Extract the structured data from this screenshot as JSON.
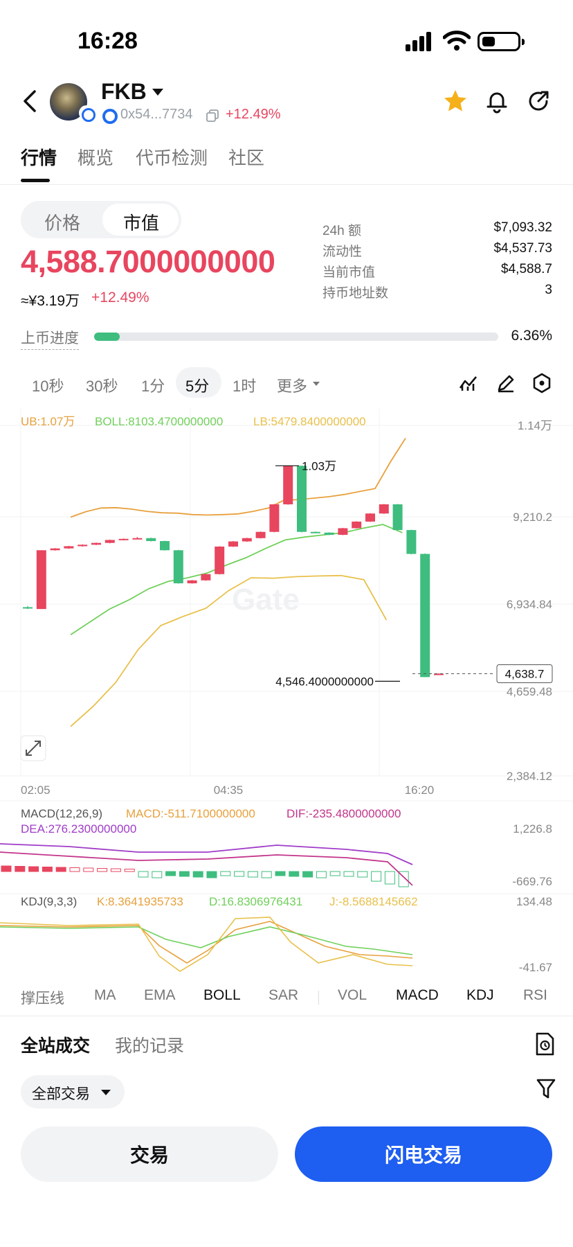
{
  "status_bar": {
    "time": "16:28"
  },
  "header": {
    "coin_name": "FKB",
    "address": "0x54...7734",
    "change": "+12.49%",
    "icons": [
      "back-icon",
      "star-icon",
      "bell-icon",
      "share-icon"
    ],
    "star_color": "#f5b01a"
  },
  "tabs": [
    {
      "label": "行情",
      "active": true
    },
    {
      "label": "概览",
      "active": false
    },
    {
      "label": "代币检测",
      "active": false
    },
    {
      "label": "社区",
      "active": false
    }
  ],
  "segment": {
    "price_label": "价格",
    "mcap_label": "市值",
    "selected": "市值"
  },
  "price": {
    "main": "4,588.7000000000",
    "cny": "≈¥3.19万",
    "change": "+12.49%",
    "color": "#e8455f"
  },
  "stats": [
    {
      "label": "24h  额",
      "value": "$7,093.32"
    },
    {
      "label": "流动性",
      "value": "$4,537.73"
    },
    {
      "label": "当前市值",
      "value": "$4,588.7"
    },
    {
      "label": "持币地址数",
      "value": "3"
    }
  ],
  "listing_progress": {
    "label": "上币进度",
    "value": "6.36%",
    "fraction": 0.0636
  },
  "intervals": {
    "items": [
      {
        "label": "10秒",
        "active": false
      },
      {
        "label": "30秒",
        "active": false
      },
      {
        "label": "1分",
        "active": false
      },
      {
        "label": "5分",
        "active": true
      },
      {
        "label": "1时",
        "active": false
      },
      {
        "label": "更多",
        "active": false
      }
    ],
    "tools": [
      "indicator-icon",
      "draw-pen-icon",
      "settings-hex-icon"
    ]
  },
  "chart_data": {
    "type": "candlestick",
    "boll_legend": {
      "ub": "UB:1.07万",
      "boll": "BOLL:8103.4700000000",
      "lb": "LB:5479.8400000000",
      "ub_color": "#e8a03c",
      "boll_color": "#6fd05a",
      "lb_color": "#e8c04a"
    },
    "y_ticks": [
      "1.14万",
      "9,210.2",
      "6,934.84",
      "4,659.48",
      "2,384.12"
    ],
    "x_ticks": [
      "02:05",
      "04:35",
      "16:20"
    ],
    "last_price_tag": "4,638.7",
    "high_label": "1.03万",
    "low_label": "4,546.4000000000",
    "candles": [
      {
        "o": 6450,
        "c": 6420,
        "h": 6480,
        "l": 6400
      },
      {
        "o": 6400,
        "c": 8000,
        "h": 8000,
        "l": 6400
      },
      {
        "o": 8000,
        "c": 8050,
        "h": 8060,
        "l": 7990
      },
      {
        "o": 8050,
        "c": 8110,
        "h": 8120,
        "l": 8040
      },
      {
        "o": 8110,
        "c": 8150,
        "h": 8160,
        "l": 8100
      },
      {
        "o": 8150,
        "c": 8200,
        "h": 8210,
        "l": 8140
      },
      {
        "o": 8200,
        "c": 8280,
        "h": 8290,
        "l": 8190
      },
      {
        "o": 8280,
        "c": 8310,
        "h": 8320,
        "l": 8270
      },
      {
        "o": 8310,
        "c": 8330,
        "h": 8360,
        "l": 8300
      },
      {
        "o": 8330,
        "c": 8250,
        "h": 8340,
        "l": 8240
      },
      {
        "o": 8250,
        "c": 8000,
        "h": 8260,
        "l": 7990
      },
      {
        "o": 8000,
        "c": 7100,
        "h": 8010,
        "l": 7090
      },
      {
        "o": 7100,
        "c": 7180,
        "h": 7190,
        "l": 7090
      },
      {
        "o": 7180,
        "c": 7350,
        "h": 7360,
        "l": 7170
      },
      {
        "o": 7350,
        "c": 8100,
        "h": 8110,
        "l": 7340
      },
      {
        "o": 8100,
        "c": 8240,
        "h": 8250,
        "l": 8090
      },
      {
        "o": 8240,
        "c": 8330,
        "h": 8340,
        "l": 8230
      },
      {
        "o": 8330,
        "c": 8500,
        "h": 8510,
        "l": 8320
      },
      {
        "o": 8500,
        "c": 9250,
        "h": 9260,
        "l": 8490
      },
      {
        "o": 9250,
        "c": 10300,
        "h": 10300,
        "l": 9240
      },
      {
        "o": 10300,
        "c": 8500,
        "h": 10300,
        "l": 8490
      },
      {
        "o": 8500,
        "c": 8480,
        "h": 8510,
        "l": 8470
      },
      {
        "o": 8480,
        "c": 8420,
        "h": 8490,
        "l": 8410
      },
      {
        "o": 8420,
        "c": 8600,
        "h": 8610,
        "l": 8410
      },
      {
        "o": 8600,
        "c": 8780,
        "h": 8790,
        "l": 8590
      },
      {
        "o": 8780,
        "c": 9000,
        "h": 9010,
        "l": 8770
      },
      {
        "o": 9000,
        "c": 9250,
        "h": 9260,
        "l": 8990
      },
      {
        "o": 9250,
        "c": 8550,
        "h": 9260,
        "l": 8540
      },
      {
        "o": 8550,
        "c": 7900,
        "h": 8560,
        "l": 7890
      },
      {
        "o": 7900,
        "c": 4546.4,
        "h": 7910,
        "l": 4546.4
      },
      {
        "o": 4620,
        "c": 4638.7,
        "h": 4650,
        "l": 4610
      }
    ],
    "ub_line": [
      8900,
      9050,
      9150,
      9160,
      9120,
      9060,
      9020,
      9010,
      8970,
      8960,
      8970,
      8990,
      9060,
      9150,
      9360,
      9380,
      9420,
      9460,
      9520,
      9600,
      9680,
      10400,
      11050
    ],
    "mid_line": [
      5700,
      6050,
      6400,
      6650,
      6950,
      7150,
      7250,
      7380,
      7600,
      7800,
      8050,
      8280,
      8360,
      8420,
      8480,
      8600,
      8700,
      8480
    ],
    "lb_line": [
      3200,
      3750,
      4400,
      5300,
      5950,
      6200,
      6420,
      6900,
      7250,
      7240,
      7280,
      7300,
      7310,
      7200,
      6100
    ]
  },
  "macd": {
    "label": "MACD(12,26,9)",
    "macd_val": "MACD:-511.7100000000",
    "dif_val": "DIF:-235.4800000000",
    "dea_val": "DEA:276.2300000000",
    "ticks": [
      "1,226.8",
      "-669.76"
    ]
  },
  "kdj": {
    "label": "KDJ(9,3,3)",
    "k_val": "K:8.3641935733",
    "d_val": "D:16.8306976431",
    "j_val": "J:-8.5688145662",
    "ticks": [
      "134.48",
      "-41.67"
    ]
  },
  "indicators": [
    {
      "label": "撑压线",
      "on": false
    },
    {
      "label": "MA",
      "on": false
    },
    {
      "label": "EMA",
      "on": false
    },
    {
      "label": "BOLL",
      "on": true
    },
    {
      "label": "SAR",
      "on": false
    },
    {
      "label": "VOL",
      "on": false
    },
    {
      "label": "MACD",
      "on": true
    },
    {
      "label": "KDJ",
      "on": true
    },
    {
      "label": "RSI",
      "on": false
    }
  ],
  "trades": {
    "all_label": "全站成交",
    "mine_label": "我的记录",
    "filter_label": "全部交易"
  },
  "actions": {
    "trade": "交易",
    "flash_trade": "闪电交易",
    "flash_color": "#1e5ef0"
  }
}
